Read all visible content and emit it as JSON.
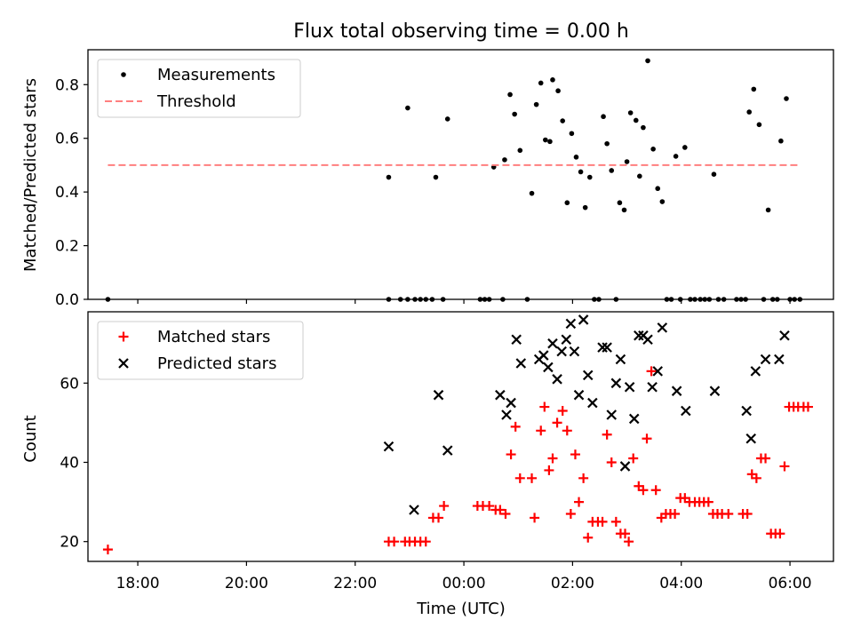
{
  "figure": {
    "title": "Flux total observing time = 0.00 h",
    "xlabel": "Time (UTC)",
    "x_tick_labels": [
      "18:00",
      "20:00",
      "22:00",
      "00:00",
      "02:00",
      "04:00",
      "06:00"
    ]
  },
  "colors": {
    "measurement": "#000000",
    "threshold": "#ff7f7f",
    "matched": "#ff0000",
    "predicted": "#000000"
  },
  "chart_data": [
    {
      "type": "scatter",
      "ylabel": "Matched/Predicted stars",
      "ylim": [
        0,
        0.93
      ],
      "y_ticks": [
        0.0,
        0.2,
        0.4,
        0.6,
        0.8
      ],
      "y_tick_labels": [
        "0.0",
        "0.2",
        "0.4",
        "0.6",
        "0.8"
      ],
      "xlim": [
        "17:05",
        "06:48"
      ],
      "legend_position": "top-left",
      "grid": false,
      "series": [
        {
          "name": "Measurements",
          "marker": "dot",
          "points": [
            [
              "17:27",
              0.0
            ],
            [
              "22:37",
              0.455
            ],
            [
              "22:37",
              0.0
            ],
            [
              "22:50",
              0.0
            ],
            [
              "22:58",
              0.713
            ],
            [
              "22:58",
              0.0
            ],
            [
              "23:06",
              0.0
            ],
            [
              "23:12",
              0.0
            ],
            [
              "23:18",
              0.0
            ],
            [
              "23:25",
              0.0
            ],
            [
              "23:29",
              0.455
            ],
            [
              "23:37",
              0.0
            ],
            [
              "23:42",
              0.672
            ],
            [
              "00:18",
              0.0
            ],
            [
              "00:23",
              0.0
            ],
            [
              "00:28",
              0.0
            ],
            [
              "00:33",
              0.493
            ],
            [
              "00:43",
              0.0
            ],
            [
              "00:45",
              0.52
            ],
            [
              "00:51",
              0.763
            ],
            [
              "00:56",
              0.69
            ],
            [
              "01:02",
              0.555
            ],
            [
              "01:10",
              0.0
            ],
            [
              "01:15",
              0.395
            ],
            [
              "01:20",
              0.726
            ],
            [
              "01:25",
              0.806
            ],
            [
              "01:30",
              0.594
            ],
            [
              "01:35",
              0.588
            ],
            [
              "01:38",
              0.818
            ],
            [
              "01:44",
              0.777
            ],
            [
              "01:49",
              0.665
            ],
            [
              "01:54",
              0.36
            ],
            [
              "01:59",
              0.618
            ],
            [
              "02:04",
              0.53
            ],
            [
              "02:09",
              0.475
            ],
            [
              "02:14",
              0.342
            ],
            [
              "02:19",
              0.455
            ],
            [
              "02:24",
              0.0
            ],
            [
              "02:29",
              0.0
            ],
            [
              "02:34",
              0.681
            ],
            [
              "02:38",
              0.58
            ],
            [
              "02:43",
              0.48
            ],
            [
              "02:48",
              0.0
            ],
            [
              "02:52",
              0.36
            ],
            [
              "02:57",
              0.333
            ],
            [
              "03:00",
              0.513
            ],
            [
              "03:04",
              0.695
            ],
            [
              "03:10",
              0.667
            ],
            [
              "03:14",
              0.459
            ],
            [
              "03:18",
              0.64
            ],
            [
              "03:23",
              0.889
            ],
            [
              "03:29",
              0.56
            ],
            [
              "03:34",
              0.413
            ],
            [
              "03:39",
              0.364
            ],
            [
              "03:44",
              0.0
            ],
            [
              "03:49",
              0.0
            ],
            [
              "03:54",
              0.533
            ],
            [
              "03:59",
              0.0
            ],
            [
              "04:04",
              0.566
            ],
            [
              "04:10",
              0.0
            ],
            [
              "04:15",
              0.0
            ],
            [
              "04:21",
              0.0
            ],
            [
              "04:26",
              0.0
            ],
            [
              "04:31",
              0.0
            ],
            [
              "04:36",
              0.466
            ],
            [
              "04:41",
              0.0
            ],
            [
              "04:47",
              0.0
            ],
            [
              "05:01",
              0.0
            ],
            [
              "05:06",
              0.0
            ],
            [
              "05:11",
              0.0
            ],
            [
              "05:15",
              0.698
            ],
            [
              "05:20",
              0.783
            ],
            [
              "05:26",
              0.651
            ],
            [
              "05:31",
              0.0
            ],
            [
              "05:36",
              0.333
            ],
            [
              "05:41",
              0.0
            ],
            [
              "05:46",
              0.0
            ],
            [
              "05:50",
              0.59
            ],
            [
              "05:56",
              0.748
            ],
            [
              "06:00",
              0.0
            ],
            [
              "06:05",
              0.0
            ],
            [
              "06:11",
              0.0
            ]
          ]
        },
        {
          "name": "Threshold",
          "style": "dashed",
          "points": [
            [
              "17:27",
              0.5
            ],
            [
              "06:11",
              0.5
            ]
          ]
        }
      ]
    },
    {
      "type": "scatter",
      "ylabel": "Count",
      "ylim": [
        15,
        78
      ],
      "y_ticks": [
        20,
        40,
        60
      ],
      "y_tick_labels": [
        "20",
        "40",
        "60"
      ],
      "xlim": [
        "17:05",
        "06:48"
      ],
      "legend_position": "top-left",
      "grid": false,
      "series": [
        {
          "name": "Matched stars",
          "marker": "plus",
          "points": [
            [
              "17:27",
              18
            ],
            [
              "22:37",
              20
            ],
            [
              "22:43",
              20
            ],
            [
              "22:55",
              20
            ],
            [
              "23:00",
              20
            ],
            [
              "23:06",
              20
            ],
            [
              "23:12",
              20
            ],
            [
              "23:18",
              20
            ],
            [
              "23:26",
              26
            ],
            [
              "23:32",
              26
            ],
            [
              "23:38",
              29
            ],
            [
              "00:15",
              29
            ],
            [
              "00:21",
              29
            ],
            [
              "00:28",
              29
            ],
            [
              "00:35",
              28
            ],
            [
              "00:40",
              28
            ],
            [
              "00:46",
              27
            ],
            [
              "00:52",
              42
            ],
            [
              "00:57",
              49
            ],
            [
              "01:02",
              36
            ],
            [
              "01:15",
              36
            ],
            [
              "01:18",
              26
            ],
            [
              "01:25",
              48
            ],
            [
              "01:29",
              54
            ],
            [
              "01:34",
              38
            ],
            [
              "01:38",
              41
            ],
            [
              "01:43",
              50
            ],
            [
              "01:49",
              53
            ],
            [
              "01:54",
              48
            ],
            [
              "01:58",
              27
            ],
            [
              "02:03",
              42
            ],
            [
              "02:07",
              30
            ],
            [
              "02:12",
              36
            ],
            [
              "02:17",
              21
            ],
            [
              "02:22",
              25
            ],
            [
              "02:28",
              25
            ],
            [
              "02:33",
              25
            ],
            [
              "02:38",
              47
            ],
            [
              "02:43",
              40
            ],
            [
              "02:48",
              25
            ],
            [
              "02:53",
              22
            ],
            [
              "02:58",
              22
            ],
            [
              "03:02",
              20
            ],
            [
              "03:07",
              41
            ],
            [
              "03:13",
              34
            ],
            [
              "03:18",
              33
            ],
            [
              "03:22",
              46
            ],
            [
              "03:27",
              63
            ],
            [
              "03:32",
              33
            ],
            [
              "03:38",
              26
            ],
            [
              "03:43",
              27
            ],
            [
              "03:48",
              27
            ],
            [
              "03:53",
              27
            ],
            [
              "03:59",
              31
            ],
            [
              "04:04",
              31
            ],
            [
              "04:09",
              30
            ],
            [
              "04:15",
              30
            ],
            [
              "04:20",
              30
            ],
            [
              "04:25",
              30
            ],
            [
              "04:30",
              30
            ],
            [
              "04:35",
              27
            ],
            [
              "04:40",
              27
            ],
            [
              "04:45",
              27
            ],
            [
              "04:52",
              27
            ],
            [
              "05:08",
              27
            ],
            [
              "05:13",
              27
            ],
            [
              "05:18",
              37
            ],
            [
              "05:23",
              36
            ],
            [
              "05:28",
              41
            ],
            [
              "05:33",
              41
            ],
            [
              "05:39",
              22
            ],
            [
              "05:44",
              22
            ],
            [
              "05:49",
              22
            ],
            [
              "05:54",
              39
            ],
            [
              "05:59",
              54
            ],
            [
              "06:04",
              54
            ],
            [
              "06:09",
              54
            ],
            [
              "06:15",
              54
            ],
            [
              "06:20",
              54
            ]
          ]
        },
        {
          "name": "Predicted stars",
          "marker": "x",
          "points": [
            [
              "22:37",
              44
            ],
            [
              "23:05",
              28
            ],
            [
              "23:32",
              57
            ],
            [
              "23:42",
              43
            ],
            [
              "00:40",
              57
            ],
            [
              "00:47",
              52
            ],
            [
              "00:52",
              55
            ],
            [
              "00:58",
              71
            ],
            [
              "01:03",
              65
            ],
            [
              "01:23",
              66
            ],
            [
              "01:28",
              67
            ],
            [
              "01:33",
              64
            ],
            [
              "01:38",
              70
            ],
            [
              "01:43",
              61
            ],
            [
              "01:48",
              68
            ],
            [
              "01:53",
              71
            ],
            [
              "01:58",
              75
            ],
            [
              "02:02",
              68
            ],
            [
              "02:07",
              57
            ],
            [
              "02:12",
              76
            ],
            [
              "02:17",
              62
            ],
            [
              "02:22",
              55
            ],
            [
              "02:33",
              69
            ],
            [
              "02:38",
              69
            ],
            [
              "02:43",
              52
            ],
            [
              "02:48",
              60
            ],
            [
              "02:53",
              66
            ],
            [
              "02:58",
              39
            ],
            [
              "03:03",
              59
            ],
            [
              "03:08",
              51
            ],
            [
              "03:13",
              72
            ],
            [
              "03:18",
              72
            ],
            [
              "03:23",
              71
            ],
            [
              "03:28",
              59
            ],
            [
              "03:34",
              63
            ],
            [
              "03:39",
              74
            ],
            [
              "03:55",
              58
            ],
            [
              "04:05",
              53
            ],
            [
              "04:37",
              58
            ],
            [
              "05:12",
              53
            ],
            [
              "05:17",
              46
            ],
            [
              "05:22",
              63
            ],
            [
              "05:33",
              66
            ],
            [
              "05:48",
              66
            ],
            [
              "05:54",
              72
            ]
          ]
        }
      ]
    }
  ]
}
